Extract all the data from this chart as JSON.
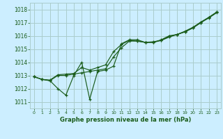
{
  "title": "Graphe pression niveau de la mer (hPa)",
  "bg_color": "#cceeff",
  "grid_color": "#aacccc",
  "line_color": "#1a5c1a",
  "text_color": "#1a5c1a",
  "xlim": [
    -0.5,
    23.5
  ],
  "ylim": [
    1010.5,
    1018.5
  ],
  "yticks": [
    1011,
    1012,
    1013,
    1014,
    1015,
    1016,
    1017,
    1018
  ],
  "xticks": [
    0,
    1,
    2,
    3,
    4,
    5,
    6,
    7,
    8,
    9,
    10,
    11,
    12,
    13,
    14,
    15,
    16,
    17,
    18,
    19,
    20,
    21,
    22,
    23
  ],
  "series1_x": [
    0,
    1,
    2,
    3,
    4,
    5,
    6,
    7,
    8,
    9,
    10,
    11,
    12,
    13,
    14,
    15,
    16,
    17,
    18,
    19,
    20,
    21,
    22,
    23
  ],
  "series1_y": [
    1012.9,
    1012.7,
    1012.6,
    1012.0,
    1011.5,
    1013.0,
    1014.0,
    1011.2,
    1013.3,
    1013.4,
    1013.7,
    1015.4,
    1015.7,
    1015.7,
    1015.5,
    1015.5,
    1015.7,
    1016.0,
    1016.1,
    1016.3,
    1016.6,
    1017.0,
    1017.4,
    1017.8
  ],
  "series2_x": [
    0,
    1,
    2,
    3,
    4,
    5,
    6,
    7,
    8,
    9,
    10,
    11,
    12,
    13,
    14,
    15,
    16,
    17,
    18,
    19,
    20,
    21,
    22,
    23
  ],
  "series2_y": [
    1012.9,
    1012.7,
    1012.6,
    1013.0,
    1013.0,
    1013.1,
    1013.2,
    1013.3,
    1013.4,
    1013.5,
    1014.4,
    1015.1,
    1015.6,
    1015.6,
    1015.5,
    1015.5,
    1015.65,
    1015.9,
    1016.1,
    1016.3,
    1016.6,
    1017.0,
    1017.35,
    1017.75
  ],
  "series3_x": [
    0,
    1,
    2,
    3,
    4,
    5,
    6,
    7,
    8,
    9,
    10,
    11,
    12,
    13,
    14,
    15,
    16,
    17,
    18,
    19,
    20,
    21,
    22,
    23
  ],
  "series3_y": [
    1012.9,
    1012.7,
    1012.65,
    1013.05,
    1013.1,
    1013.15,
    1013.6,
    1013.4,
    1013.6,
    1013.8,
    1014.8,
    1015.35,
    1015.65,
    1015.6,
    1015.5,
    1015.55,
    1015.65,
    1015.95,
    1016.1,
    1016.35,
    1016.65,
    1017.05,
    1017.4,
    1017.8
  ]
}
